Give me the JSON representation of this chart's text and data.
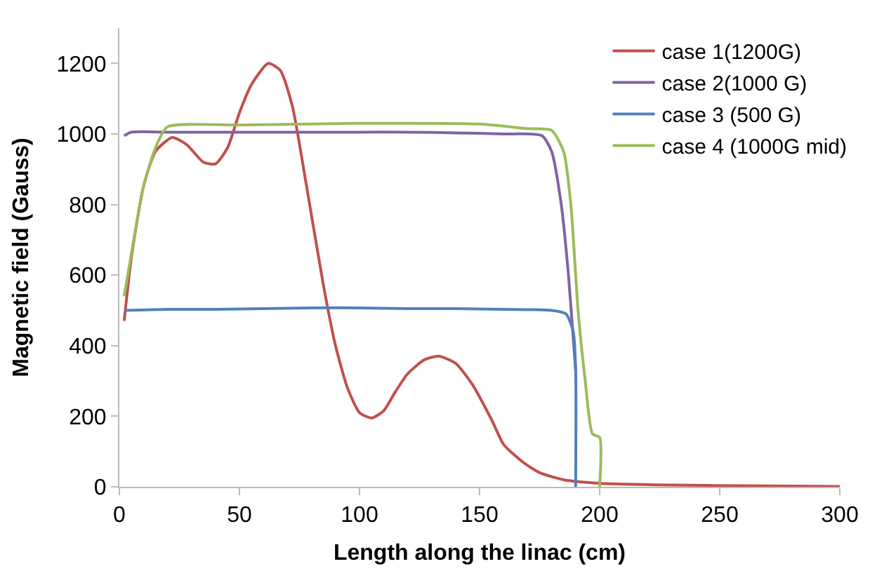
{
  "chart_data": {
    "type": "line",
    "xlabel": "Length along the linac (cm)",
    "ylabel": "Magnetic field (Gauss)",
    "xlim": [
      0,
      300
    ],
    "xticks": [
      0,
      50,
      100,
      150,
      200,
      250,
      300
    ],
    "ylim": [
      0,
      1300
    ],
    "yticks": [
      0,
      200,
      400,
      600,
      800,
      1000,
      1200
    ],
    "legend": "top right",
    "marker": "none",
    "line_style": "solid",
    "series": [
      {
        "name": "case 1(1200G)",
        "color": "#c0504d",
        "x": [
          2,
          5,
          10,
          15,
          22,
          28,
          35,
          40,
          45,
          50,
          55,
          62,
          67,
          72,
          78,
          85,
          90,
          95,
          100,
          105,
          110,
          115,
          120,
          127,
          133,
          140,
          147,
          155,
          160,
          168,
          175,
          185,
          200,
          230,
          260,
          300
        ],
        "values": [
          470,
          650,
          850,
          950,
          990,
          970,
          920,
          915,
          960,
          1060,
          1140,
          1200,
          1180,
          1080,
          850,
          570,
          400,
          280,
          210,
          195,
          215,
          270,
          320,
          360,
          370,
          350,
          290,
          190,
          120,
          70,
          40,
          20,
          10,
          5,
          3,
          1
        ]
      },
      {
        "name": "case 2(1000 G)",
        "color": "#8064a2",
        "x": [
          2,
          5,
          20,
          40,
          60,
          80,
          100,
          120,
          140,
          160,
          176,
          180,
          184,
          187,
          189,
          190
        ],
        "values": [
          995,
          1005,
          1005,
          1005,
          1005,
          1005,
          1005,
          1005,
          1003,
          1000,
          995,
          950,
          800,
          600,
          420,
          330
        ]
      },
      {
        "name": "case 3 (500 G)",
        "color": "#4f81bd",
        "x": [
          2,
          20,
          40,
          60,
          80,
          100,
          120,
          140,
          160,
          180,
          186,
          189,
          190,
          190
        ],
        "values": [
          500,
          503,
          503,
          505,
          507,
          507,
          505,
          505,
          503,
          500,
          490,
          440,
          330,
          0
        ]
      },
      {
        "name": "case 4 (1000G mid)",
        "color": "#9bbb59",
        "x": [
          2,
          6,
          10,
          15,
          20,
          50,
          100,
          150,
          170,
          180,
          185,
          188,
          191,
          194,
          197,
          200,
          200
        ],
        "values": [
          540,
          700,
          850,
          960,
          1020,
          1025,
          1030,
          1028,
          1015,
          1010,
          950,
          800,
          500,
          300,
          150,
          140,
          0
        ]
      }
    ]
  }
}
